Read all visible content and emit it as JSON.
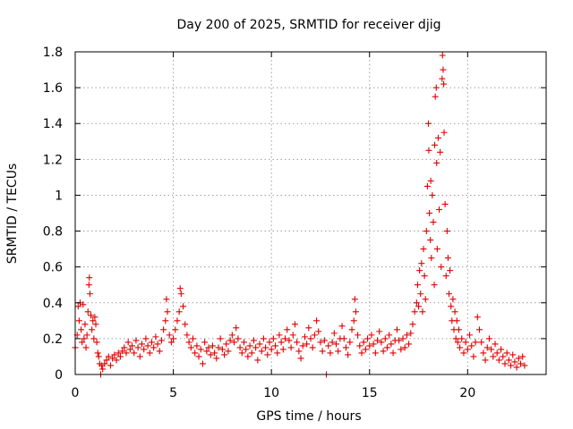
{
  "chart_data": {
    "type": "scatter",
    "title": "Day 200 of 2025, SRMTID for receiver djig",
    "xlabel": "GPS time / hours",
    "ylabel": "SRMTID / TECUs",
    "xlim": [
      0,
      24
    ],
    "ylim": [
      0,
      1.8
    ],
    "xticks": [
      "0",
      "5",
      "10",
      "15",
      "20"
    ],
    "yticks": [
      "0",
      "0.2",
      "0.4",
      "0.6",
      "0.8",
      "1",
      "1.2",
      "1.4",
      "1.6",
      "1.8"
    ],
    "grid": true,
    "marker": "+",
    "marker_color": "#e00000",
    "series": [
      {
        "name": "SRMTID",
        "points": [
          [
            0.0,
            0.15
          ],
          [
            0.1,
            0.22
          ],
          [
            0.15,
            0.38
          ],
          [
            0.2,
            0.3
          ],
          [
            0.25,
            0.4
          ],
          [
            0.3,
            0.25
          ],
          [
            0.35,
            0.18
          ],
          [
            0.4,
            0.39
          ],
          [
            0.45,
            0.2
          ],
          [
            0.5,
            0.28
          ],
          [
            0.55,
            0.15
          ],
          [
            0.6,
            0.22
          ],
          [
            0.65,
            0.35
          ],
          [
            0.7,
            0.5
          ],
          [
            0.72,
            0.54
          ],
          [
            0.75,
            0.45
          ],
          [
            0.8,
            0.33
          ],
          [
            0.85,
            0.25
          ],
          [
            0.9,
            0.3
          ],
          [
            0.95,
            0.2
          ],
          [
            1.0,
            0.32
          ],
          [
            1.05,
            0.28
          ],
          [
            1.1,
            0.18
          ],
          [
            1.15,
            0.12
          ],
          [
            1.2,
            0.1
          ],
          [
            1.25,
            0.06
          ],
          [
            1.3,
            0.0
          ],
          [
            1.35,
            0.05
          ],
          [
            1.4,
            0.03
          ],
          [
            1.5,
            0.06
          ],
          [
            1.6,
            0.08
          ],
          [
            1.7,
            0.1
          ],
          [
            1.8,
            0.05
          ],
          [
            1.9,
            0.09
          ],
          [
            2.0,
            0.11
          ],
          [
            2.1,
            0.08
          ],
          [
            2.2,
            0.12
          ],
          [
            2.3,
            0.1
          ],
          [
            2.4,
            0.13
          ],
          [
            2.5,
            0.15
          ],
          [
            2.6,
            0.12
          ],
          [
            2.7,
            0.18
          ],
          [
            2.8,
            0.14
          ],
          [
            2.9,
            0.16
          ],
          [
            3.0,
            0.12
          ],
          [
            3.1,
            0.19
          ],
          [
            3.2,
            0.15
          ],
          [
            3.3,
            0.1
          ],
          [
            3.4,
            0.17
          ],
          [
            3.5,
            0.14
          ],
          [
            3.6,
            0.2
          ],
          [
            3.7,
            0.16
          ],
          [
            3.8,
            0.12
          ],
          [
            3.9,
            0.18
          ],
          [
            4.0,
            0.15
          ],
          [
            4.1,
            0.21
          ],
          [
            4.2,
            0.17
          ],
          [
            4.3,
            0.13
          ],
          [
            4.4,
            0.19
          ],
          [
            4.5,
            0.25
          ],
          [
            4.6,
            0.3
          ],
          [
            4.65,
            0.42
          ],
          [
            4.7,
            0.35
          ],
          [
            4.8,
            0.22
          ],
          [
            4.9,
            0.18
          ],
          [
            5.0,
            0.2
          ],
          [
            5.1,
            0.25
          ],
          [
            5.2,
            0.3
          ],
          [
            5.3,
            0.35
          ],
          [
            5.35,
            0.48
          ],
          [
            5.4,
            0.45
          ],
          [
            5.5,
            0.38
          ],
          [
            5.6,
            0.28
          ],
          [
            5.7,
            0.22
          ],
          [
            5.8,
            0.18
          ],
          [
            5.9,
            0.15
          ],
          [
            6.0,
            0.2
          ],
          [
            6.1,
            0.12
          ],
          [
            6.2,
            0.16
          ],
          [
            6.3,
            0.1
          ],
          [
            6.4,
            0.14
          ],
          [
            6.5,
            0.06
          ],
          [
            6.6,
            0.18
          ],
          [
            6.7,
            0.13
          ],
          [
            6.8,
            0.15
          ],
          [
            6.9,
            0.11
          ],
          [
            7.0,
            0.16
          ],
          [
            7.1,
            0.12
          ],
          [
            7.2,
            0.09
          ],
          [
            7.3,
            0.15
          ],
          [
            7.4,
            0.2
          ],
          [
            7.5,
            0.14
          ],
          [
            7.6,
            0.11
          ],
          [
            7.7,
            0.17
          ],
          [
            7.8,
            0.13
          ],
          [
            7.9,
            0.19
          ],
          [
            8.0,
            0.22
          ],
          [
            8.1,
            0.18
          ],
          [
            8.2,
            0.26
          ],
          [
            8.3,
            0.2
          ],
          [
            8.4,
            0.15
          ],
          [
            8.5,
            0.12
          ],
          [
            8.6,
            0.18
          ],
          [
            8.7,
            0.14
          ],
          [
            8.8,
            0.1
          ],
          [
            8.9,
            0.16
          ],
          [
            9.0,
            0.12
          ],
          [
            9.1,
            0.19
          ],
          [
            9.2,
            0.15
          ],
          [
            9.3,
            0.08
          ],
          [
            9.4,
            0.17
          ],
          [
            9.5,
            0.13
          ],
          [
            9.6,
            0.2
          ],
          [
            9.7,
            0.15
          ],
          [
            9.8,
            0.11
          ],
          [
            9.9,
            0.18
          ],
          [
            10.0,
            0.14
          ],
          [
            10.1,
            0.2
          ],
          [
            10.2,
            0.16
          ],
          [
            10.3,
            0.12
          ],
          [
            10.4,
            0.22
          ],
          [
            10.5,
            0.18
          ],
          [
            10.6,
            0.14
          ],
          [
            10.7,
            0.2
          ],
          [
            10.8,
            0.25
          ],
          [
            10.9,
            0.19
          ],
          [
            11.0,
            0.15
          ],
          [
            11.1,
            0.22
          ],
          [
            11.2,
            0.28
          ],
          [
            11.3,
            0.18
          ],
          [
            11.4,
            0.13
          ],
          [
            11.5,
            0.09
          ],
          [
            11.6,
            0.16
          ],
          [
            11.7,
            0.21
          ],
          [
            11.8,
            0.17
          ],
          [
            11.9,
            0.26
          ],
          [
            12.0,
            0.2
          ],
          [
            12.1,
            0.15
          ],
          [
            12.2,
            0.22
          ],
          [
            12.3,
            0.3
          ],
          [
            12.4,
            0.24
          ],
          [
            12.5,
            0.18
          ],
          [
            12.6,
            0.13
          ],
          [
            12.7,
            0.19
          ],
          [
            12.8,
            0.0
          ],
          [
            12.9,
            0.16
          ],
          [
            13.0,
            0.12
          ],
          [
            13.1,
            0.18
          ],
          [
            13.2,
            0.23
          ],
          [
            13.3,
            0.17
          ],
          [
            13.4,
            0.13
          ],
          [
            13.5,
            0.2
          ],
          [
            13.6,
            0.27
          ],
          [
            13.7,
            0.2
          ],
          [
            13.8,
            0.15
          ],
          [
            13.9,
            0.11
          ],
          [
            14.0,
            0.18
          ],
          [
            14.1,
            0.25
          ],
          [
            14.2,
            0.3
          ],
          [
            14.25,
            0.42
          ],
          [
            14.3,
            0.35
          ],
          [
            14.4,
            0.22
          ],
          [
            14.5,
            0.16
          ],
          [
            14.6,
            0.12
          ],
          [
            14.7,
            0.18
          ],
          [
            14.8,
            0.14
          ],
          [
            14.9,
            0.2
          ],
          [
            15.0,
            0.16
          ],
          [
            15.1,
            0.22
          ],
          [
            15.2,
            0.17
          ],
          [
            15.3,
            0.12
          ],
          [
            15.4,
            0.19
          ],
          [
            15.5,
            0.24
          ],
          [
            15.6,
            0.18
          ],
          [
            15.7,
            0.13
          ],
          [
            15.8,
            0.2
          ],
          [
            15.9,
            0.15
          ],
          [
            16.0,
            0.22
          ],
          [
            16.1,
            0.17
          ],
          [
            16.2,
            0.12
          ],
          [
            16.3,
            0.19
          ],
          [
            16.4,
            0.25
          ],
          [
            16.5,
            0.19
          ],
          [
            16.6,
            0.14
          ],
          [
            16.7,
            0.2
          ],
          [
            16.8,
            0.15
          ],
          [
            16.9,
            0.22
          ],
          [
            17.0,
            0.17
          ],
          [
            17.1,
            0.23
          ],
          [
            17.2,
            0.28
          ],
          [
            17.3,
            0.35
          ],
          [
            17.4,
            0.4
          ],
          [
            17.45,
            0.5
          ],
          [
            17.5,
            0.38
          ],
          [
            17.55,
            0.58
          ],
          [
            17.6,
            0.45
          ],
          [
            17.65,
            0.62
          ],
          [
            17.7,
            0.35
          ],
          [
            17.75,
            0.7
          ],
          [
            17.8,
            0.55
          ],
          [
            17.85,
            0.42
          ],
          [
            17.9,
            0.8
          ],
          [
            17.95,
            1.05
          ],
          [
            18.0,
            1.4
          ],
          [
            18.02,
            1.25
          ],
          [
            18.05,
            0.9
          ],
          [
            18.1,
            0.75
          ],
          [
            18.12,
            1.08
          ],
          [
            18.15,
            0.65
          ],
          [
            18.2,
            1.0
          ],
          [
            18.25,
            0.85
          ],
          [
            18.3,
            0.5
          ],
          [
            18.32,
            1.28
          ],
          [
            18.35,
            1.55
          ],
          [
            18.4,
            1.6
          ],
          [
            18.42,
            1.18
          ],
          [
            18.45,
            0.7
          ],
          [
            18.5,
            1.32
          ],
          [
            18.55,
            0.92
          ],
          [
            18.6,
            1.24
          ],
          [
            18.65,
            0.6
          ],
          [
            18.7,
            1.65
          ],
          [
            18.72,
            1.78
          ],
          [
            18.75,
            1.7
          ],
          [
            18.78,
            1.62
          ],
          [
            18.8,
            1.35
          ],
          [
            18.85,
            0.95
          ],
          [
            18.9,
            0.55
          ],
          [
            18.95,
            0.8
          ],
          [
            19.0,
            0.65
          ],
          [
            19.05,
            0.45
          ],
          [
            19.1,
            0.58
          ],
          [
            19.15,
            0.38
          ],
          [
            19.2,
            0.3
          ],
          [
            19.25,
            0.42
          ],
          [
            19.3,
            0.25
          ],
          [
            19.35,
            0.35
          ],
          [
            19.4,
            0.2
          ],
          [
            19.45,
            0.3
          ],
          [
            19.5,
            0.18
          ],
          [
            19.55,
            0.25
          ],
          [
            19.6,
            0.15
          ],
          [
            19.7,
            0.2
          ],
          [
            19.8,
            0.12
          ],
          [
            19.9,
            0.18
          ],
          [
            20.0,
            0.14
          ],
          [
            20.1,
            0.22
          ],
          [
            20.2,
            0.16
          ],
          [
            20.3,
            0.1
          ],
          [
            20.4,
            0.18
          ],
          [
            20.5,
            0.32
          ],
          [
            20.6,
            0.25
          ],
          [
            20.7,
            0.18
          ],
          [
            20.8,
            0.12
          ],
          [
            20.9,
            0.08
          ],
          [
            21.0,
            0.15
          ],
          [
            21.1,
            0.2
          ],
          [
            21.2,
            0.14
          ],
          [
            21.3,
            0.1
          ],
          [
            21.4,
            0.17
          ],
          [
            21.5,
            0.12
          ],
          [
            21.6,
            0.08
          ],
          [
            21.7,
            0.14
          ],
          [
            21.8,
            0.1
          ],
          [
            21.9,
            0.06
          ],
          [
            22.0,
            0.12
          ],
          [
            22.1,
            0.08
          ],
          [
            22.2,
            0.05
          ],
          [
            22.3,
            0.11
          ],
          [
            22.4,
            0.07
          ],
          [
            22.5,
            0.04
          ],
          [
            22.6,
            0.09
          ],
          [
            22.7,
            0.06
          ],
          [
            22.8,
            0.1
          ],
          [
            22.9,
            0.05
          ]
        ]
      }
    ]
  }
}
